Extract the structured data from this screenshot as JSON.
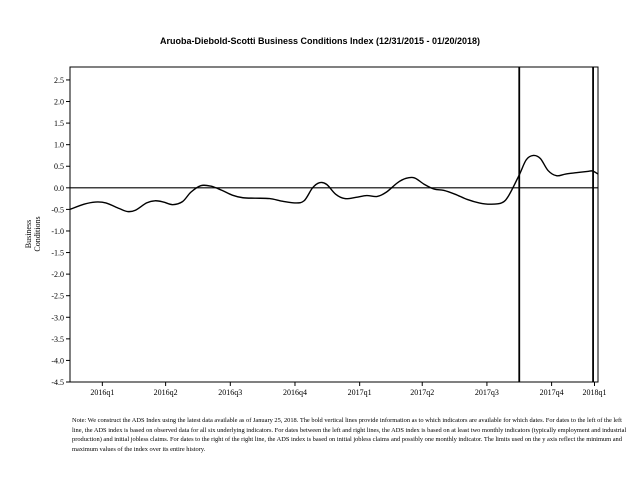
{
  "chart_data": {
    "type": "line",
    "title": "Aruoba-Diebold-Scotti Business Conditions Index (12/31/2015 - 01/20/2018)",
    "xlabel": "",
    "ylabel": "Business Conditions",
    "ylim": [
      -4.5,
      2.8
    ],
    "yticks": [
      -4.5,
      -4.0,
      -3.5,
      -3.0,
      -2.5,
      -2.0,
      -1.5,
      -1.0,
      -0.5,
      0.0,
      0.5,
      1.0,
      1.5,
      2.0,
      2.5
    ],
    "ytick_labels": [
      "-4.5",
      "-4.0",
      "-3.5",
      "-3.0",
      "-2.5",
      "-2.0",
      "-1.5",
      "-1.0",
      "-0.5",
      "0.0",
      "0.5",
      "1.0",
      "1.5",
      "2.0",
      "2.5"
    ],
    "xlim": [
      "2015-12-31",
      "2018-01-20"
    ],
    "xticks": [
      {
        "label": "2016q1",
        "date": "2016-02-15"
      },
      {
        "label": "2016q2",
        "date": "2016-05-15"
      },
      {
        "label": "2016q3",
        "date": "2016-08-15"
      },
      {
        "label": "2016q4",
        "date": "2016-11-15"
      },
      {
        "label": "2017q1",
        "date": "2017-02-15"
      },
      {
        "label": "2017q2",
        "date": "2017-05-15"
      },
      {
        "label": "2017q3",
        "date": "2017-08-15"
      },
      {
        "label": "2017q4",
        "date": "2017-11-15"
      },
      {
        "label": "2018q1",
        "date": "2018-01-15"
      }
    ],
    "vlines": [
      "2017-09-30",
      "2018-01-13"
    ],
    "hline": 0.0,
    "grid": false,
    "series": [
      {
        "points": [
          {
            "x": "2015-12-31",
            "y": -0.5
          },
          {
            "x": "2016-01-20",
            "y": -0.38
          },
          {
            "x": "2016-02-05",
            "y": -0.33
          },
          {
            "x": "2016-02-20",
            "y": -0.35
          },
          {
            "x": "2016-03-10",
            "y": -0.48
          },
          {
            "x": "2016-03-22",
            "y": -0.55
          },
          {
            "x": "2016-04-02",
            "y": -0.52
          },
          {
            "x": "2016-04-18",
            "y": -0.35
          },
          {
            "x": "2016-04-30",
            "y": -0.3
          },
          {
            "x": "2016-05-12",
            "y": -0.33
          },
          {
            "x": "2016-05-25",
            "y": -0.39
          },
          {
            "x": "2016-06-08",
            "y": -0.32
          },
          {
            "x": "2016-06-20",
            "y": -0.1
          },
          {
            "x": "2016-07-04",
            "y": 0.05
          },
          {
            "x": "2016-07-18",
            "y": 0.04
          },
          {
            "x": "2016-08-02",
            "y": -0.05
          },
          {
            "x": "2016-08-18",
            "y": -0.17
          },
          {
            "x": "2016-09-02",
            "y": -0.23
          },
          {
            "x": "2016-09-20",
            "y": -0.24
          },
          {
            "x": "2016-10-10",
            "y": -0.25
          },
          {
            "x": "2016-10-28",
            "y": -0.31
          },
          {
            "x": "2016-11-15",
            "y": -0.35
          },
          {
            "x": "2016-11-28",
            "y": -0.3
          },
          {
            "x": "2016-12-10",
            "y": 0.0
          },
          {
            "x": "2016-12-20",
            "y": 0.12
          },
          {
            "x": "2016-12-30",
            "y": 0.08
          },
          {
            "x": "2017-01-12",
            "y": -0.15
          },
          {
            "x": "2017-01-25",
            "y": -0.25
          },
          {
            "x": "2017-02-10",
            "y": -0.22
          },
          {
            "x": "2017-02-25",
            "y": -0.18
          },
          {
            "x": "2017-03-12",
            "y": -0.2
          },
          {
            "x": "2017-03-25",
            "y": -0.1
          },
          {
            "x": "2017-04-10",
            "y": 0.12
          },
          {
            "x": "2017-04-22",
            "y": 0.22
          },
          {
            "x": "2017-05-04",
            "y": 0.23
          },
          {
            "x": "2017-05-18",
            "y": 0.08
          },
          {
            "x": "2017-06-01",
            "y": -0.03
          },
          {
            "x": "2017-06-15",
            "y": -0.06
          },
          {
            "x": "2017-07-01",
            "y": -0.15
          },
          {
            "x": "2017-07-18",
            "y": -0.27
          },
          {
            "x": "2017-08-04",
            "y": -0.35
          },
          {
            "x": "2017-08-20",
            "y": -0.38
          },
          {
            "x": "2017-09-05",
            "y": -0.35
          },
          {
            "x": "2017-09-15",
            "y": -0.18
          },
          {
            "x": "2017-09-30",
            "y": 0.3
          },
          {
            "x": "2017-10-10",
            "y": 0.65
          },
          {
            "x": "2017-10-20",
            "y": 0.75
          },
          {
            "x": "2017-10-30",
            "y": 0.68
          },
          {
            "x": "2017-11-10",
            "y": 0.4
          },
          {
            "x": "2017-11-22",
            "y": 0.28
          },
          {
            "x": "2017-12-05",
            "y": 0.32
          },
          {
            "x": "2017-12-20",
            "y": 0.35
          },
          {
            "x": "2018-01-05",
            "y": 0.38
          },
          {
            "x": "2018-01-12",
            "y": 0.39
          },
          {
            "x": "2018-01-20",
            "y": 0.32
          }
        ]
      }
    ]
  },
  "note": "Note: We construct the ADS Index using the latest data available as of January 25, 2018. The bold vertical lines provide information as to which indicators are available for which dates. For dates to the left of the left line, the ADS index is based on observed data for all six underlying indicators.  For dates between the left and right lines, the ADS index is based on at least two monthly indicators (typically employment and industrial production) and initial jobless claims.  For dates to the right of the right line, the ADS index is based on initial jobless claims and possibly one monthly indicator. The limits used on the y axis reflect the minimum and maximum values of the index over its entire history.",
  "colors": {
    "line": "#000000",
    "background": "#ffffff"
  }
}
